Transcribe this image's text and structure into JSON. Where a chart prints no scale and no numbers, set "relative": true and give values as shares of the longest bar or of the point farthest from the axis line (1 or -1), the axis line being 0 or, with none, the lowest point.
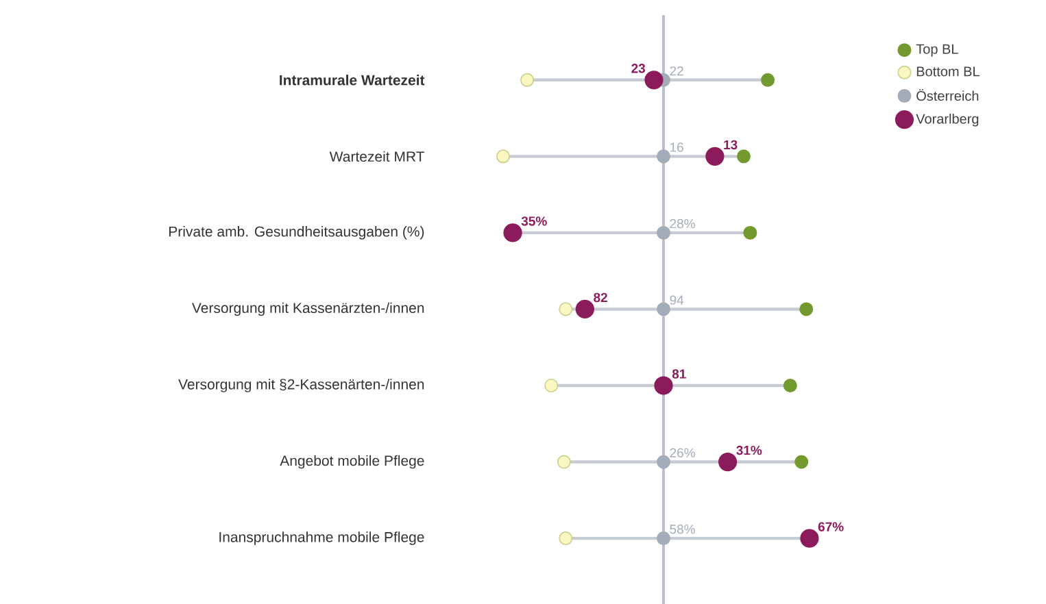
{
  "chart_data": {
    "type": "scatter",
    "orientation": "horizontal",
    "relative": true,
    "marker": "circle",
    "legend": "right",
    "grid": "y",
    "categories": [
      "**Intramurale Wartezeit**",
      "Wartezeit MRT",
      "Private amb. Gesundheitsausgaben (%)",
      "Versorgung mit Kassenärzten-/innen",
      "Versorgung mit §2-Kassenärten-/innen",
      "Angebot mobile Pflege",
      "Inanspruchnahme mobile Pflege"
    ],
    "series": [
      {
        "name": "Top BL",
        "color": "#739a2f",
        "values": [
          0.65,
          0.5,
          0.54,
          0.89,
          0.79,
          0.86,
          null
        ]
      },
      {
        "name": "Bottom BL",
        "color": "#fbf7c2",
        "values": [
          -0.85,
          -1.0,
          null,
          -0.61,
          -0.7,
          -0.62,
          -0.61
        ]
      },
      {
        "name": "Österreich",
        "color": "#a3acb9",
        "values": [
          0,
          0,
          0,
          0,
          null,
          0,
          0
        ]
      },
      {
        "name": "Vorarlberg",
        "color": "#8c1b5b",
        "values": [
          -0.06,
          0.32,
          -0.94,
          -0.49,
          0,
          0.4,
          0.91
        ]
      }
    ],
    "ref_lines": [
      {
        "axis": "x",
        "value": 0,
        "color": "#b9bfcb"
      }
    ],
    "annotations": [
      {
        "text": "22",
        "x": 0,
        "y": "**Intramurale Wartezeit**"
      },
      {
        "text": "23",
        "x": -0.06,
        "y": "**Intramurale Wartezeit**"
      },
      {
        "text": "16",
        "x": 0,
        "y": "Wartezeit MRT"
      },
      {
        "text": "13",
        "x": 0.32,
        "y": "Wartezeit MRT"
      },
      {
        "text": "28%",
        "x": 0,
        "y": "Private amb. Gesundheitsausgaben (%)"
      },
      {
        "text": "35%",
        "x": -0.94,
        "y": "Private amb. Gesundheitsausgaben (%)"
      },
      {
        "text": "94",
        "x": 0,
        "y": "Versorgung mit Kassenärzten-/innen"
      },
      {
        "text": "82",
        "x": -0.49,
        "y": "Versorgung mit Kassenärzten-/innen"
      },
      {
        "text": "81",
        "x": 0,
        "y": "Versorgung mit §2-Kassenärten-/innen"
      },
      {
        "text": "26%",
        "x": 0,
        "y": "Angebot mobile Pflege"
      },
      {
        "text": "31%",
        "x": 0.4,
        "y": "Angebot mobile Pflege"
      },
      {
        "text": "58%",
        "x": 0,
        "y": "Inanspruchnahme mobile Pflege"
      },
      {
        "text": "67%",
        "x": 0.91,
        "y": "Inanspruchnahme mobile Pflege"
      }
    ]
  }
}
